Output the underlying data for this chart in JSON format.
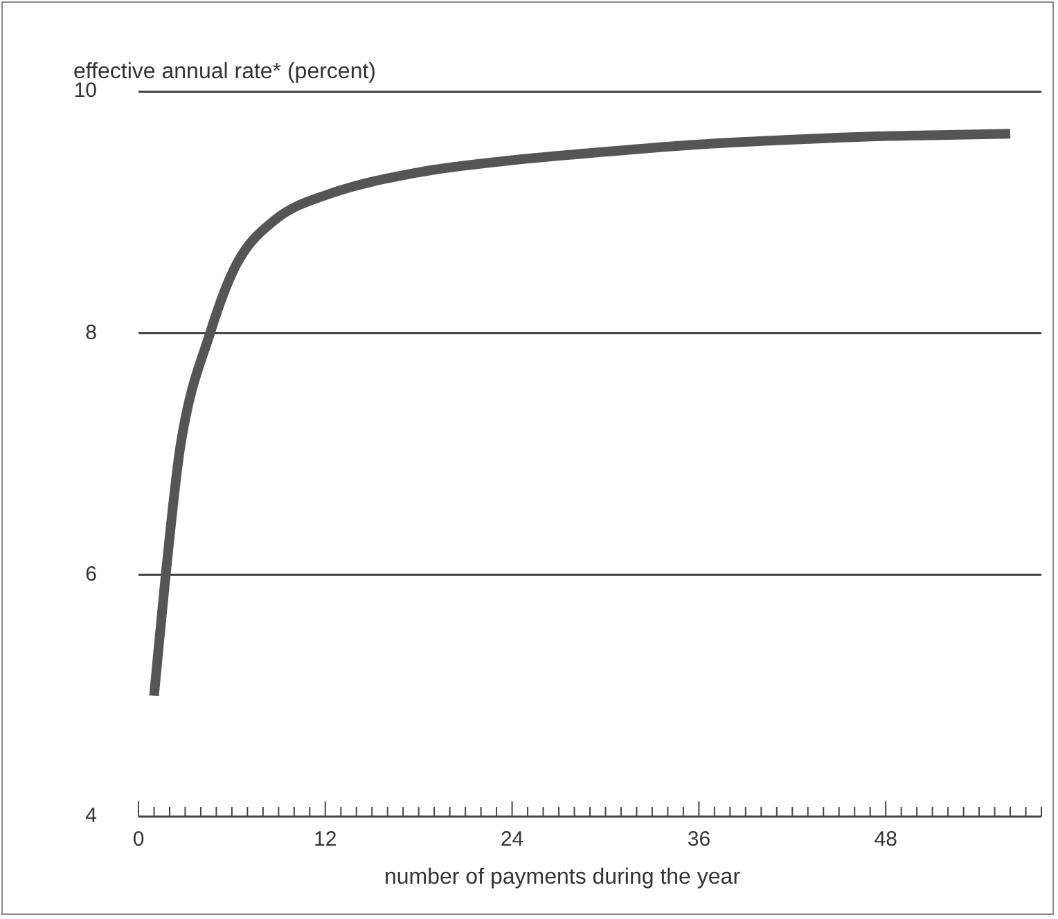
{
  "chart_data": {
    "type": "line",
    "ylabel": "effective annual rate* (percent)",
    "xlabel": "number of payments during the year",
    "x": [
      1,
      1.75,
      2.7,
      4.6,
      6.3,
      8.8,
      12,
      18,
      24,
      30,
      36,
      42,
      48,
      52,
      56
    ],
    "series": [
      {
        "color": "#555555",
        "values": [
          5,
          6,
          7.07,
          8,
          8.57,
          8.94,
          9.14,
          9.33,
          9.43,
          9.5,
          9.56,
          9.6,
          9.63,
          9.64,
          9.65
        ]
      }
    ],
    "xlim": [
      0,
      58
    ],
    "xticks": [
      0,
      {
        "value": 1,
        "label": null
      },
      {
        "value": 2,
        "label": null
      },
      {
        "value": 3,
        "label": null
      },
      {
        "value": 4,
        "label": null
      },
      {
        "value": 5,
        "label": null
      },
      {
        "value": 6,
        "label": null
      },
      {
        "value": 7,
        "label": null
      },
      {
        "value": 8,
        "label": null
      },
      {
        "value": 9,
        "label": null
      },
      {
        "value": 10,
        "label": null
      },
      {
        "value": 11,
        "label": null
      },
      12,
      {
        "value": 13,
        "label": null
      },
      {
        "value": 14,
        "label": null
      },
      {
        "value": 15,
        "label": null
      },
      {
        "value": 16,
        "label": null
      },
      {
        "value": 17,
        "label": null
      },
      {
        "value": 18,
        "label": null
      },
      {
        "value": 19,
        "label": null
      },
      {
        "value": 20,
        "label": null
      },
      {
        "value": 21,
        "label": null
      },
      {
        "value": 22,
        "label": null
      },
      {
        "value": 23,
        "label": null
      },
      24,
      {
        "value": 25,
        "label": null
      },
      {
        "value": 26,
        "label": null
      },
      {
        "value": 27,
        "label": null
      },
      {
        "value": 28,
        "label": null
      },
      {
        "value": 29,
        "label": null
      },
      {
        "value": 30,
        "label": null
      },
      {
        "value": 31,
        "label": null
      },
      {
        "value": 32,
        "label": null
      },
      {
        "value": 33,
        "label": null
      },
      {
        "value": 34,
        "label": null
      },
      {
        "value": 35,
        "label": null
      },
      36,
      {
        "value": 37,
        "label": null
      },
      {
        "value": 38,
        "label": null
      },
      {
        "value": 39,
        "label": null
      },
      {
        "value": 40,
        "label": null
      },
      {
        "value": 41,
        "label": null
      },
      {
        "value": 42,
        "label": null
      },
      {
        "value": 43,
        "label": null
      },
      {
        "value": 44,
        "label": null
      },
      {
        "value": 45,
        "label": null
      },
      {
        "value": 46,
        "label": null
      },
      {
        "value": 47,
        "label": null
      },
      48,
      {
        "value": 49,
        "label": null
      },
      {
        "value": 50,
        "label": null
      },
      {
        "value": 51,
        "label": null
      },
      {
        "value": 52,
        "label": null
      },
      {
        "value": 53,
        "label": null
      },
      {
        "value": 54,
        "label": null
      },
      {
        "value": 55,
        "label": null
      },
      {
        "value": 56,
        "label": null
      },
      {
        "value": 57,
        "label": null
      },
      {
        "value": 58,
        "label": null
      }
    ],
    "ylim": [
      4,
      10
    ],
    "yticks": [
      4,
      6,
      8,
      10
    ],
    "grid": "y",
    "legend": false,
    "marker": "none",
    "line_style": "solid"
  }
}
